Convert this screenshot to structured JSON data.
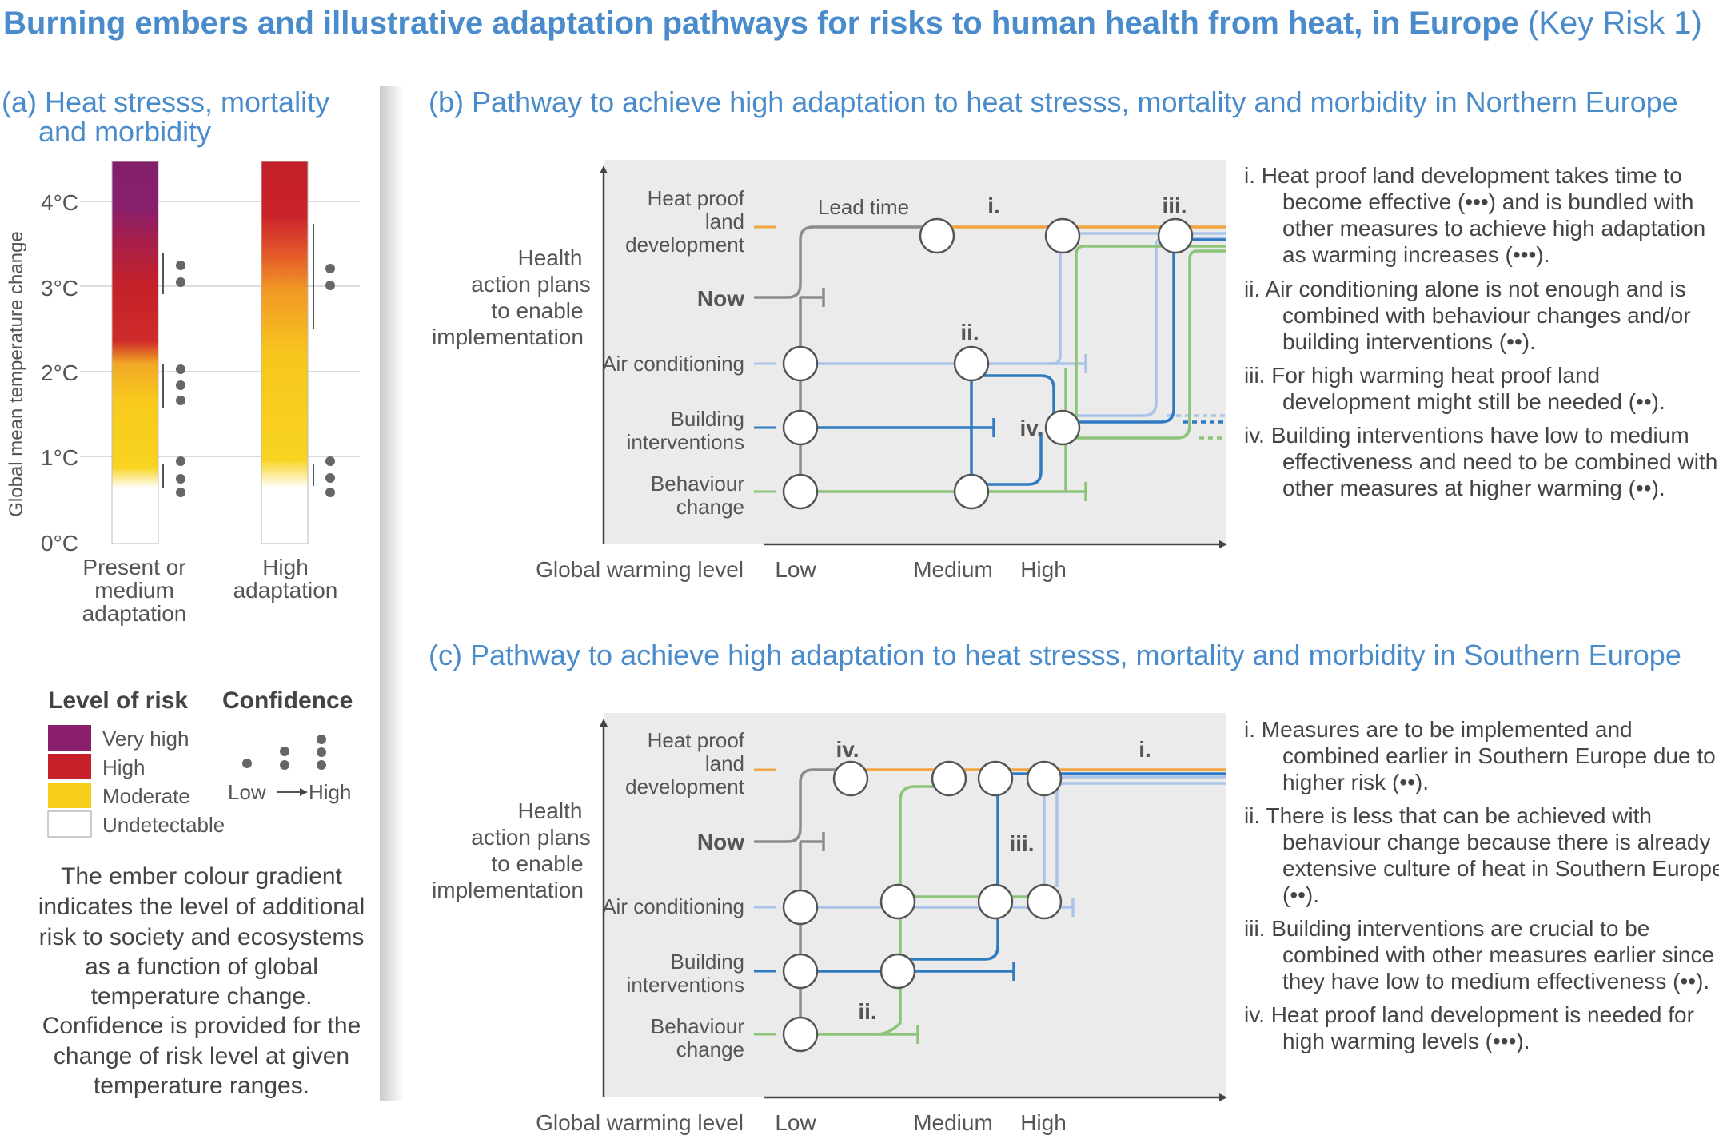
{
  "title": {
    "main": "Burning embers and illustrative adaptation pathways for risks to human health from heat, in Europe",
    "suffix": " (Key Risk 1)"
  },
  "panel_a": {
    "title_line1": "(a) Heat stresss, mortality",
    "title_line2": "and morbidity",
    "ylabel": "Global mean temperature change",
    "yticks": [
      "0°C",
      "1°C",
      "2°C",
      "3°C",
      "4°C"
    ],
    "ember1_label": [
      "Present or",
      "medium",
      "adaptation"
    ],
    "ember2_label": [
      "High",
      "adaptation"
    ]
  },
  "legend": {
    "risk_title": "Level of risk",
    "risk_levels": [
      {
        "label": "Very high",
        "color": "#8a1f6e"
      },
      {
        "label": "High",
        "color": "#c8202a"
      },
      {
        "label": "Moderate",
        "color": "#f7cd1c"
      },
      {
        "label": "Undetectable",
        "color": "#ffffff"
      }
    ],
    "conf_title": "Confidence",
    "conf_low": "Low",
    "conf_high": "High",
    "description": [
      "The ember colour gradient",
      "indicates the level of additional",
      "risk to society and ecosystems",
      "as a function of global",
      "temperature change.",
      "Confidence is provided for the",
      "change of risk level at given",
      "temperature ranges."
    ]
  },
  "panel_b": {
    "title": "(b) Pathway to achieve high adaptation to heat stresss, mortality and morbidity in Northern Europe",
    "y_title": [
      "Health",
      "action plans",
      "to enable",
      "implementation"
    ],
    "rows": {
      "heat": [
        "Heat proof",
        "land",
        "development"
      ],
      "now": "Now",
      "ac": "Air conditioning",
      "building": [
        "Building",
        "interventions"
      ],
      "behaviour": [
        "Behaviour",
        "change"
      ]
    },
    "lead_time": "Lead time",
    "markers": {
      "i": "i.",
      "ii": "ii.",
      "iii": "iii.",
      "iv": "iv."
    },
    "xlabel": "Global warming level",
    "xticks": [
      "Low",
      "Medium",
      "High"
    ],
    "notes": [
      "i. Heat proof land development takes time to",
      "become effective (•••) and is bundled with",
      "other measures to achieve high adaptation",
      "as warming increases (•••).",
      "ii. Air conditioning alone is not enough and is",
      "combined with behaviour changes and/or",
      "building interventions (••).",
      "iii. For high warming heat proof land",
      "development might still be needed (••).",
      "iv. Building interventions have low to medium",
      "effectiveness and need to be combined with",
      "other measures at higher warming (••)."
    ]
  },
  "panel_c": {
    "title": "(c) Pathway to achieve high adaptation to heat stresss, mortality and morbidity in Southern Europe",
    "y_title": [
      "Health",
      "action plans",
      "to enable",
      "implementation"
    ],
    "rows": {
      "heat": [
        "Heat proof",
        "land",
        "development"
      ],
      "now": "Now",
      "ac": "Air conditioning",
      "building": [
        "Building",
        "interventions"
      ],
      "behaviour": [
        "Behaviour",
        "change"
      ]
    },
    "markers": {
      "i": "i.",
      "ii": "ii.",
      "iii": "iii.",
      "iv": "iv."
    },
    "xlabel": "Global warming level",
    "xticks": [
      "Low",
      "Medium",
      "High"
    ],
    "notes": [
      "i.  Measures are to be implemented and",
      "combined earlier in Southern Europe due to",
      "higher risk (••).",
      "ii. There is less that can be achieved with",
      "behaviour change because there is already",
      "extensive culture of heat in Southern Europe",
      "(••).",
      "iii. Building interventions are crucial to be",
      "combined with other measures earlier since",
      "they have low to medium effectiveness (••).",
      "iv. Heat proof land development is needed for",
      "high warming levels (•••)."
    ]
  },
  "colors": {
    "heat_proof": "#f2a541",
    "air_conditioning": "#a9c4e8",
    "building": "#2f7bc2",
    "behaviour": "#8cc47a",
    "health_plans": "#8c8c8c",
    "panel_bg": "#ebebeb",
    "title_blue": "#4a8ccb"
  }
}
